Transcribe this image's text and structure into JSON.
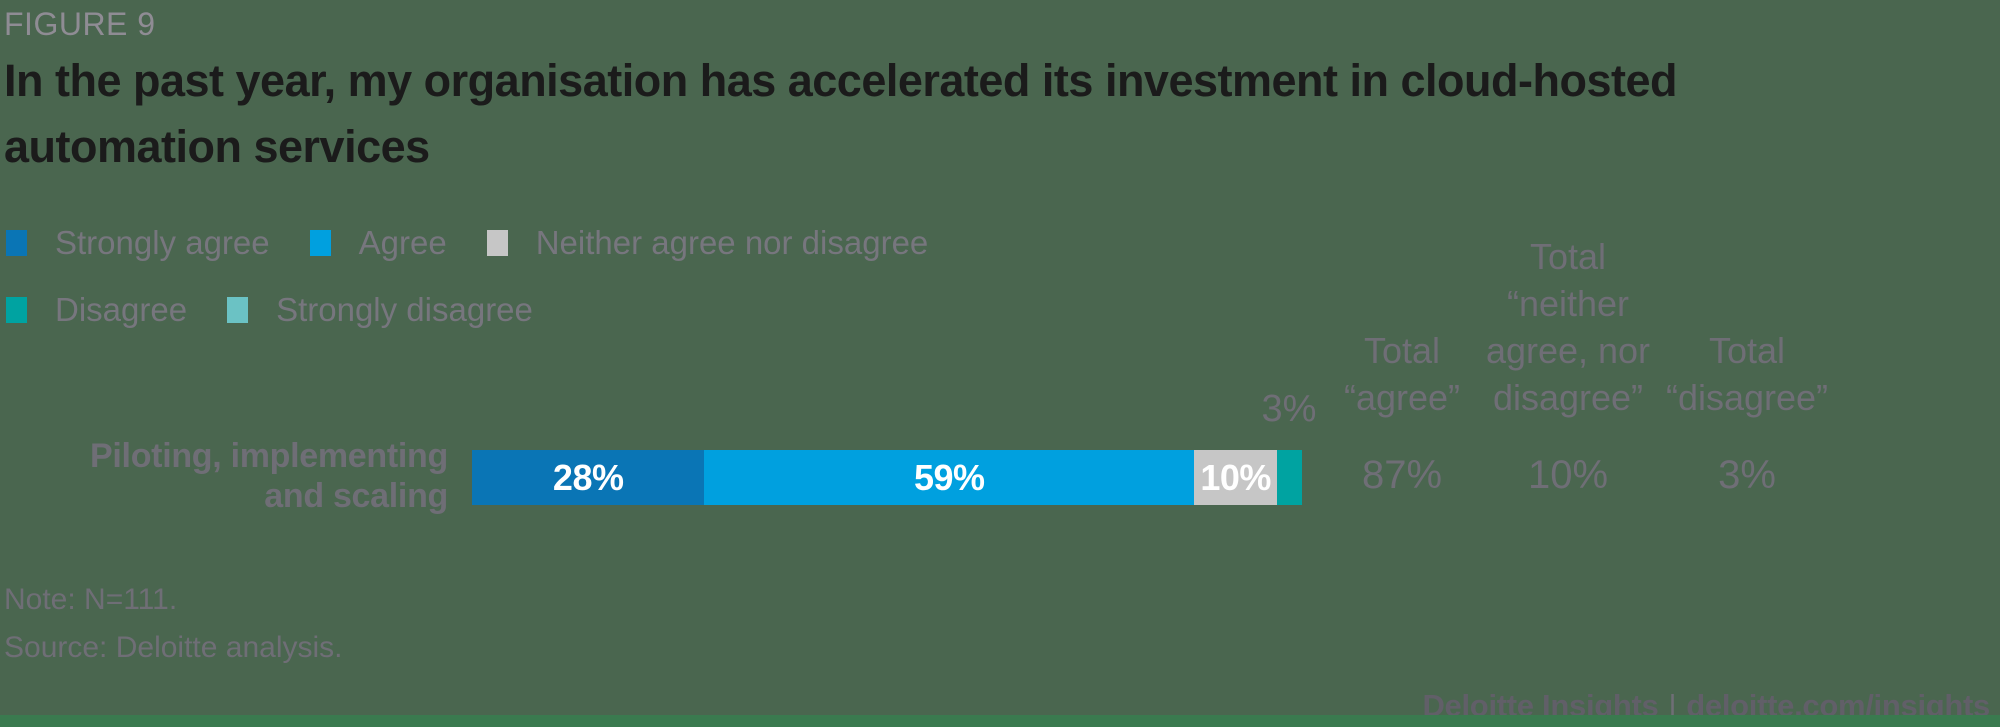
{
  "figure_label": "FIGURE 9",
  "title": "In the past year, my organisation has accelerated its investment in cloud-hosted\nautomation services",
  "legend": {
    "items": [
      {
        "label": "Strongly agree",
        "color": "#0A75B5"
      },
      {
        "label": "Agree",
        "color": "#00A0DF"
      },
      {
        "label": "Neither agree nor disagree",
        "color": "#C6C6C6"
      },
      {
        "label": "Disagree",
        "color": "#00A3A1"
      },
      {
        "label": "Strongly disagree",
        "color": "#6BC2C4"
      }
    ]
  },
  "chart_data": {
    "type": "bar",
    "stacked": true,
    "orientation": "horizontal",
    "title": "In the past year, my organisation has accelerated its investment in cloud-hosted automation services",
    "categories": [
      "Piloting, implementing and scaling"
    ],
    "category_label_display": "Piloting, implementing\nand scaling",
    "xlim": [
      0,
      100
    ],
    "axes_visible": false,
    "legend_position": "top-left",
    "series": [
      {
        "name": "Strongly agree",
        "value": 28,
        "display": "28%",
        "color": "#0A75B5"
      },
      {
        "name": "Agree",
        "value": 59,
        "display": "59%",
        "color": "#00A0DF"
      },
      {
        "name": "Neither agree nor disagree",
        "value": 10,
        "display": "10%",
        "color": "#C6C6C6"
      },
      {
        "name": "Disagree",
        "value": 3,
        "display": "3%",
        "color": "#00A3A1"
      },
      {
        "name": "Strongly disagree",
        "value": 0,
        "display": "",
        "color": "#6BC2C4"
      }
    ],
    "outside_label": "3%"
  },
  "totals": {
    "columns": [
      {
        "header": "Total\n“agree”",
        "value": "87%"
      },
      {
        "header": "Total\n“neither\nagree, nor\ndisagree”",
        "value": "10%"
      },
      {
        "header": "Total\n“disagree”",
        "value": "3%"
      }
    ]
  },
  "note": "Note: N=111.",
  "source": "Source: Deloitte analysis.",
  "footer": {
    "brand": "Deloitte Insights",
    "separator": "|",
    "url": "deloitte.com/insights"
  },
  "colors": {
    "background": "#4A664F",
    "accent_bar": "#3A7A4F",
    "title_text": "#1B1B1B",
    "muted_text": "#6F6E76",
    "figure_label_text": "#8F8C94"
  }
}
